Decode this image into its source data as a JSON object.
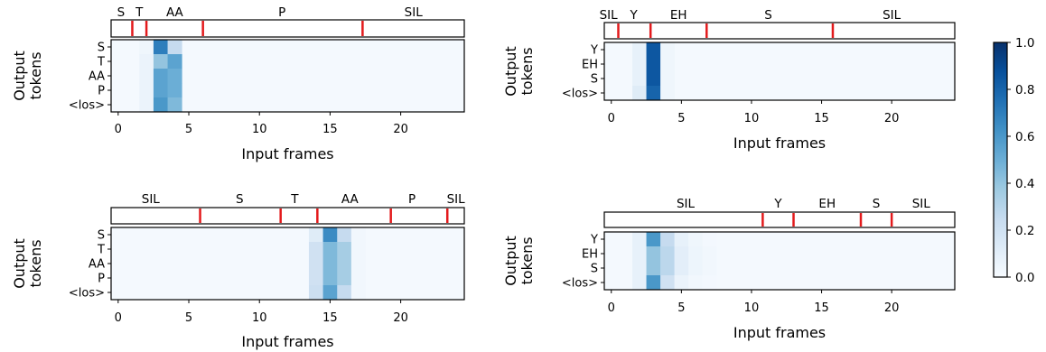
{
  "colors": {
    "cmap_low": "#f7fbff",
    "cmap_high": "#08306b",
    "boundary": "#e31a1c",
    "frame": "#000000"
  },
  "colorbar": {
    "min": 0.0,
    "max": 1.0,
    "ticks": [
      "0.0",
      "0.2",
      "0.4",
      "0.6",
      "0.8",
      "1.0"
    ]
  },
  "chart_data": [
    {
      "type": "heatmap",
      "xlabel": "Input frames",
      "ylabel": [
        "Output",
        "tokens"
      ],
      "x_ticks": [
        0,
        5,
        10,
        15,
        20
      ],
      "xlim": [
        -0.5,
        24.5
      ],
      "rows": [
        "S",
        "T",
        "AA",
        "P",
        "<los>"
      ],
      "phones": [
        {
          "label": "S",
          "x": 0.2
        },
        {
          "label": "T",
          "x": 1.5
        },
        {
          "label": "AA",
          "x": 4.0
        },
        {
          "label": "P",
          "x": 11.6
        },
        {
          "label": "SIL",
          "x": 20.9
        }
      ],
      "boundaries": [
        1.0,
        2.0,
        6.0,
        17.3
      ],
      "cells": [
        {
          "row": 0,
          "col": 2,
          "v": 0.04
        },
        {
          "row": 0,
          "col": 3,
          "v": 0.7
        },
        {
          "row": 0,
          "col": 4,
          "v": 0.25
        },
        {
          "row": 1,
          "col": 2,
          "v": 0.06
        },
        {
          "row": 1,
          "col": 3,
          "v": 0.4
        },
        {
          "row": 1,
          "col": 4,
          "v": 0.55
        },
        {
          "row": 2,
          "col": 2,
          "v": 0.06
        },
        {
          "row": 2,
          "col": 3,
          "v": 0.55
        },
        {
          "row": 2,
          "col": 4,
          "v": 0.5
        },
        {
          "row": 3,
          "col": 2,
          "v": 0.06
        },
        {
          "row": 3,
          "col": 3,
          "v": 0.55
        },
        {
          "row": 3,
          "col": 4,
          "v": 0.5
        },
        {
          "row": 4,
          "col": 2,
          "v": 0.06
        },
        {
          "row": 4,
          "col": 3,
          "v": 0.6
        },
        {
          "row": 4,
          "col": 4,
          "v": 0.45
        }
      ]
    },
    {
      "type": "heatmap",
      "xlabel": "Input frames",
      "ylabel": [
        "Output",
        "tokens"
      ],
      "x_ticks": [
        0,
        5,
        10,
        15,
        20
      ],
      "xlim": [
        -0.5,
        24.5
      ],
      "rows": [
        "Y",
        "EH",
        "S",
        "<los>"
      ],
      "phones": [
        {
          "label": "SIL",
          "x": -0.2
        },
        {
          "label": "Y",
          "x": 1.6
        },
        {
          "label": "EH",
          "x": 4.8
        },
        {
          "label": "S",
          "x": 11.2
        },
        {
          "label": "SIL",
          "x": 20.0
        }
      ],
      "boundaries": [
        0.5,
        2.8,
        6.8,
        15.8
      ],
      "cells": [
        {
          "row": 0,
          "col": 2,
          "v": 0.08
        },
        {
          "row": 0,
          "col": 3,
          "v": 0.85
        },
        {
          "row": 0,
          "col": 4,
          "v": 0.04
        },
        {
          "row": 1,
          "col": 2,
          "v": 0.08
        },
        {
          "row": 1,
          "col": 3,
          "v": 0.85
        },
        {
          "row": 1,
          "col": 4,
          "v": 0.04
        },
        {
          "row": 2,
          "col": 2,
          "v": 0.08
        },
        {
          "row": 2,
          "col": 3,
          "v": 0.85
        },
        {
          "row": 2,
          "col": 4,
          "v": 0.04
        },
        {
          "row": 3,
          "col": 2,
          "v": 0.12
        },
        {
          "row": 3,
          "col": 3,
          "v": 0.8
        },
        {
          "row": 3,
          "col": 4,
          "v": 0.04
        }
      ]
    },
    {
      "type": "heatmap",
      "xlabel": "Input frames",
      "ylabel": [
        "Output",
        "tokens"
      ],
      "x_ticks": [
        0,
        5,
        10,
        15,
        20
      ],
      "xlim": [
        -0.5,
        24.5
      ],
      "rows": [
        "S",
        "T",
        "AA",
        "P",
        "<los>"
      ],
      "phones": [
        {
          "label": "SIL",
          "x": 2.3
        },
        {
          "label": "S",
          "x": 8.6
        },
        {
          "label": "T",
          "x": 12.5
        },
        {
          "label": "AA",
          "x": 16.4
        },
        {
          "label": "P",
          "x": 20.8
        },
        {
          "label": "SIL",
          "x": 23.9
        }
      ],
      "boundaries": [
        5.8,
        11.5,
        14.1,
        19.3,
        23.3
      ],
      "cells": [
        {
          "row": 0,
          "col": 14,
          "v": 0.12
        },
        {
          "row": 0,
          "col": 15,
          "v": 0.65
        },
        {
          "row": 0,
          "col": 16,
          "v": 0.25
        },
        {
          "row": 0,
          "col": 17,
          "v": 0.03
        },
        {
          "row": 1,
          "col": 14,
          "v": 0.2
        },
        {
          "row": 1,
          "col": 15,
          "v": 0.45
        },
        {
          "row": 1,
          "col": 16,
          "v": 0.35
        },
        {
          "row": 1,
          "col": 17,
          "v": 0.03
        },
        {
          "row": 2,
          "col": 14,
          "v": 0.2
        },
        {
          "row": 2,
          "col": 15,
          "v": 0.45
        },
        {
          "row": 2,
          "col": 16,
          "v": 0.35
        },
        {
          "row": 2,
          "col": 17,
          "v": 0.03
        },
        {
          "row": 3,
          "col": 14,
          "v": 0.2
        },
        {
          "row": 3,
          "col": 15,
          "v": 0.45
        },
        {
          "row": 3,
          "col": 16,
          "v": 0.35
        },
        {
          "row": 3,
          "col": 17,
          "v": 0.03
        },
        {
          "row": 4,
          "col": 14,
          "v": 0.22
        },
        {
          "row": 4,
          "col": 15,
          "v": 0.55
        },
        {
          "row": 4,
          "col": 16,
          "v": 0.25
        },
        {
          "row": 4,
          "col": 17,
          "v": 0.03
        }
      ]
    },
    {
      "type": "heatmap",
      "xlabel": "Input frames",
      "ylabel": [
        "Output",
        "tokens"
      ],
      "x_ticks": [
        0,
        5,
        10,
        15,
        20
      ],
      "xlim": [
        -0.5,
        24.5
      ],
      "rows": [
        "Y",
        "EH",
        "S",
        "<los>"
      ],
      "phones": [
        {
          "label": "SIL",
          "x": 5.3
        },
        {
          "label": "Y",
          "x": 11.9
        },
        {
          "label": "EH",
          "x": 15.4
        },
        {
          "label": "S",
          "x": 18.9
        },
        {
          "label": "SIL",
          "x": 22.1
        }
      ],
      "boundaries": [
        10.8,
        13.0,
        17.8,
        20.0
      ],
      "cells": [
        {
          "row": 0,
          "col": 2,
          "v": 0.08
        },
        {
          "row": 0,
          "col": 3,
          "v": 0.6
        },
        {
          "row": 0,
          "col": 4,
          "v": 0.25
        },
        {
          "row": 0,
          "col": 5,
          "v": 0.08
        },
        {
          "row": 0,
          "col": 6,
          "v": 0.04
        },
        {
          "row": 0,
          "col": 7,
          "v": 0.02
        },
        {
          "row": 1,
          "col": 2,
          "v": 0.08
        },
        {
          "row": 1,
          "col": 3,
          "v": 0.4
        },
        {
          "row": 1,
          "col": 4,
          "v": 0.28
        },
        {
          "row": 1,
          "col": 5,
          "v": 0.1
        },
        {
          "row": 1,
          "col": 6,
          "v": 0.05
        },
        {
          "row": 1,
          "col": 7,
          "v": 0.03
        },
        {
          "row": 2,
          "col": 2,
          "v": 0.08
        },
        {
          "row": 2,
          "col": 3,
          "v": 0.4
        },
        {
          "row": 2,
          "col": 4,
          "v": 0.28
        },
        {
          "row": 2,
          "col": 5,
          "v": 0.1
        },
        {
          "row": 2,
          "col": 6,
          "v": 0.05
        },
        {
          "row": 2,
          "col": 7,
          "v": 0.03
        },
        {
          "row": 3,
          "col": 2,
          "v": 0.08
        },
        {
          "row": 3,
          "col": 3,
          "v": 0.6
        },
        {
          "row": 3,
          "col": 4,
          "v": 0.2
        },
        {
          "row": 3,
          "col": 5,
          "v": 0.06
        },
        {
          "row": 3,
          "col": 6,
          "v": 0.03
        },
        {
          "row": 3,
          "col": 7,
          "v": 0.02
        }
      ]
    }
  ]
}
